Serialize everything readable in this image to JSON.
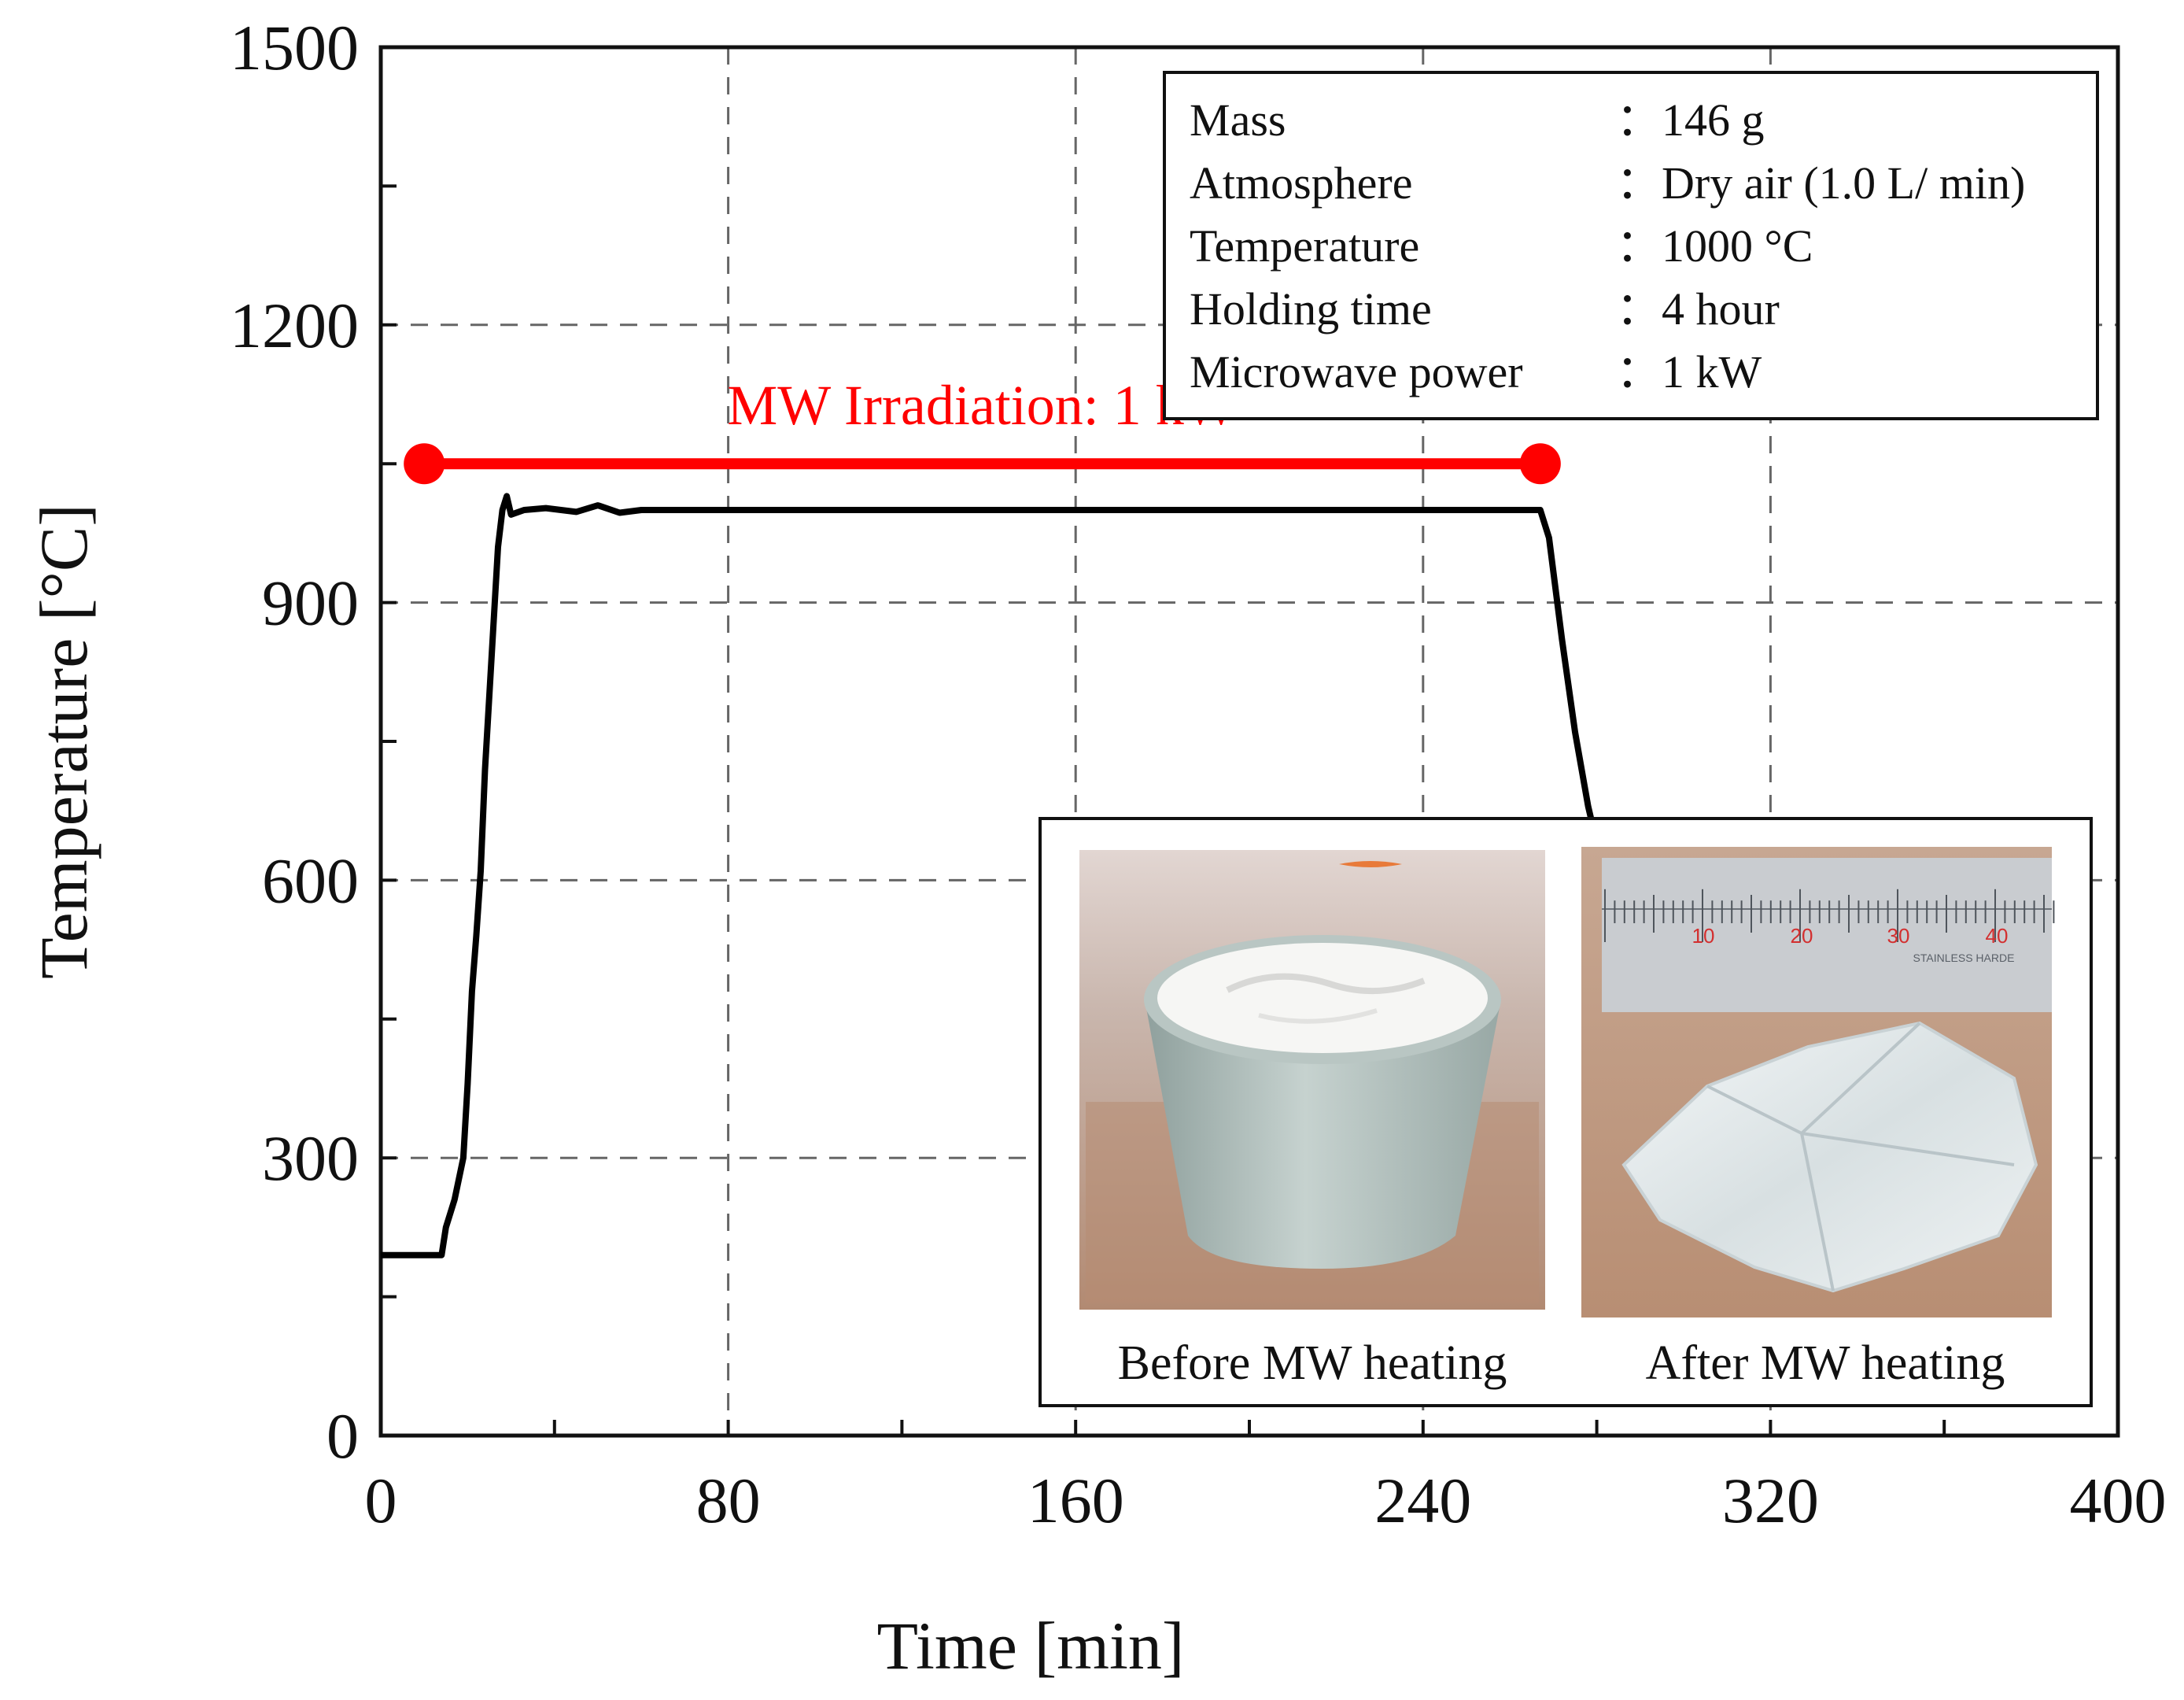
{
  "chart_data": {
    "type": "line",
    "xlabel": "Time [min]",
    "ylabel": "Temperature [°C]",
    "xlim": [
      0,
      400
    ],
    "ylim": [
      0,
      1500
    ],
    "xticks": [
      "0",
      "80",
      "160",
      "240",
      "320",
      "400"
    ],
    "yticks": [
      "0",
      "300",
      "600",
      "900",
      "1200",
      "1500"
    ],
    "grid": true,
    "series": [
      {
        "color": "#000000",
        "x": [
          0,
          14,
          15,
          17,
          19,
          20,
          21,
          22,
          23,
          24,
          25,
          26,
          27,
          28,
          29,
          30,
          33,
          38,
          45,
          50,
          55,
          60,
          80,
          160,
          240,
          267,
          269,
          272,
          275,
          278,
          280
        ],
        "y": [
          195,
          195,
          225,
          255,
          300,
          380,
          480,
          540,
          610,
          720,
          800,
          880,
          960,
          1000,
          1015,
          995,
          1000,
          1002,
          998,
          1005,
          997,
          1000,
          1000,
          1000,
          1000,
          1000,
          970,
          860,
          760,
          680,
          640
        ]
      }
    ],
    "irradiation": {
      "label": "MW Irradiation: 1 kW",
      "x_start": 10,
      "x_end": 267,
      "y": 1050,
      "color": "#ff0000"
    },
    "info_box": [
      {
        "key": "Mass",
        "value": "：146 g"
      },
      {
        "key": "Atmosphere",
        "value": "：Dry air (1.0 L/ min)"
      },
      {
        "key": "Temperature",
        "value": "：1000 °C"
      },
      {
        "key": "Holding time",
        "value": "：4 hour"
      },
      {
        "key": "Microwave power",
        "value": "：1 kW"
      }
    ],
    "photos": {
      "before_caption": "Before MW heating",
      "after_caption": "After MW heating",
      "ruler_numbers": [
        "10",
        "20",
        "30",
        "40"
      ],
      "ruler_text": "STAINLESS HARDE"
    }
  }
}
